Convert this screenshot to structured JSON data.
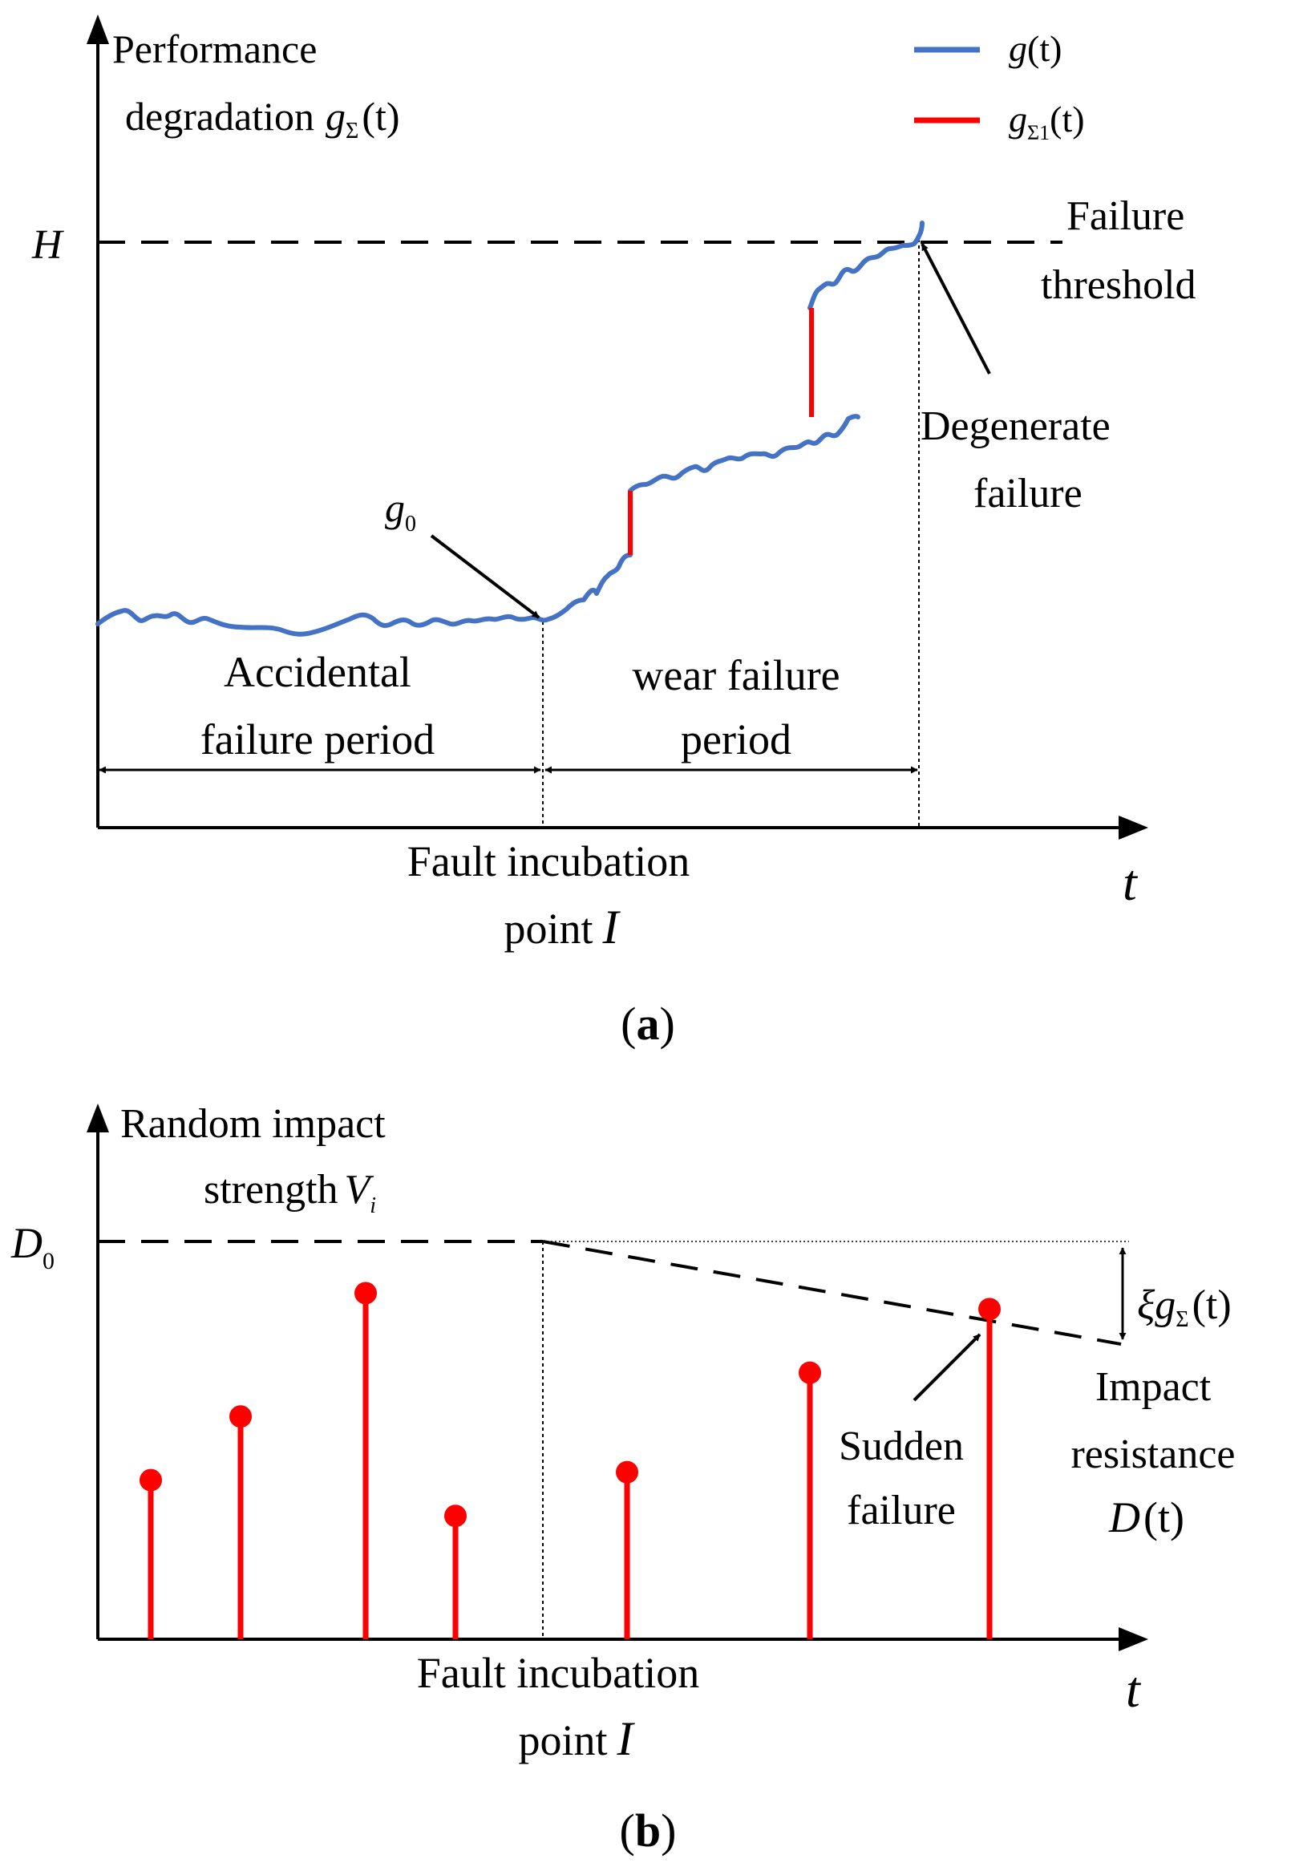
{
  "colors": {
    "degradation_line": "#4472c4",
    "jump_segment": "#ff0000",
    "impact_stem": "#ff0000",
    "axis": "#000000"
  },
  "panel_a": {
    "y_axis_label_line1": "Performance",
    "y_axis_label_line2": "degradation",
    "y_axis_symbol": "g",
    "y_axis_symbol_sub": "Σ",
    "y_axis_symbol_arg": "(t)",
    "legend": [
      {
        "symbol": "g",
        "sub": "",
        "arg": "(t)",
        "color": "#4472c4"
      },
      {
        "symbol": "g",
        "sub": "Σ1",
        "arg": "(t)",
        "color": "#ff0000"
      }
    ],
    "threshold_symbol": "H",
    "threshold_label_line1": "Failure",
    "threshold_label_line2": "threshold",
    "degenerate_line1": "Degenerate",
    "degenerate_line2": "failure",
    "g0_symbol": "g",
    "g0_sub": "0",
    "accidental_line1": "Accidental",
    "accidental_line2": "failure period",
    "wear_line1": "wear failure",
    "wear_line2": "period",
    "incubation_line1": "Fault incubation",
    "incubation_line2": "point",
    "incubation_symbol": "I",
    "x_axis_symbol": "t",
    "caption": "(a)",
    "caption_letter": "a"
  },
  "panel_b": {
    "y_axis_label_line1": "Random impact",
    "y_axis_label_line2": "strength",
    "y_axis_symbol": "V",
    "y_axis_symbol_sub": "i",
    "d0_symbol": "D",
    "d0_sub": "0",
    "xi_symbol": "ξg",
    "xi_sub": "Σ",
    "xi_arg": "(t)",
    "resistance_line1": "Impact",
    "resistance_line2": "resistance",
    "resistance_symbol": "D",
    "resistance_arg": "(t)",
    "sudden_line1": "Sudden",
    "sudden_line2": "failure",
    "incubation_line1": "Fault incubation",
    "incubation_line2": "point",
    "incubation_symbol": "I",
    "x_axis_symbol": "t",
    "caption": "(b)",
    "caption_letter": "b",
    "impacts": [
      0.4,
      0.56,
      0.87,
      0.31,
      0.42,
      0.67,
      0.83
    ]
  }
}
